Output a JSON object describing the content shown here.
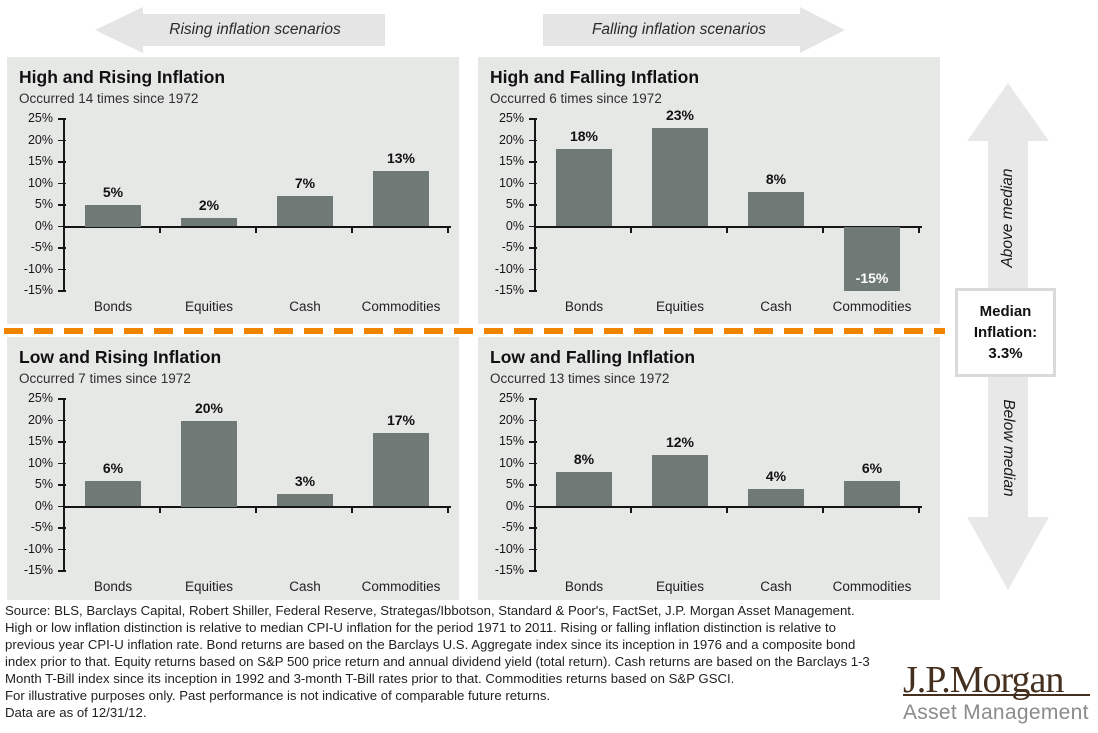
{
  "banners": {
    "left": "Rising inflation scenarios",
    "right": "Falling inflation scenarios"
  },
  "median_panel": {
    "above_label": "Above median",
    "below_label": "Below median",
    "box_lines": [
      "Median",
      "Inflation:",
      "3.3%"
    ]
  },
  "chart_data": [
    {
      "type": "bar",
      "title": "High and Rising Inflation",
      "subtitle": "Occurred 14 times since 1972",
      "categories": [
        "Bonds",
        "Equities",
        "Cash",
        "Commodities"
      ],
      "values": [
        5,
        2,
        7,
        13
      ],
      "value_labels": [
        "5%",
        "2%",
        "7%",
        "13%"
      ],
      "ylim": [
        -15,
        25
      ],
      "ytick_step": 5,
      "ytick_labels": [
        "25%",
        "20%",
        "15%",
        "10%",
        "5%",
        "0%",
        "-5%",
        "-10%",
        "-15%"
      ],
      "grid": false,
      "bar_color": "#6f7a76"
    },
    {
      "type": "bar",
      "title": "High and Falling Inflation",
      "subtitle": "Occurred 6 times since 1972",
      "categories": [
        "Bonds",
        "Equities",
        "Cash",
        "Commodities"
      ],
      "values": [
        18,
        23,
        8,
        -15
      ],
      "value_labels": [
        "18%",
        "23%",
        "8%",
        "-15%"
      ],
      "ylim": [
        -15,
        25
      ],
      "ytick_step": 5,
      "ytick_labels": [
        "25%",
        "20%",
        "15%",
        "10%",
        "5%",
        "0%",
        "-5%",
        "-10%",
        "-15%"
      ],
      "grid": false,
      "bar_color": "#6f7a76"
    },
    {
      "type": "bar",
      "title": "Low and Rising Inflation",
      "subtitle": "Occurred 7 times since 1972",
      "categories": [
        "Bonds",
        "Equities",
        "Cash",
        "Commodities"
      ],
      "values": [
        6,
        20,
        3,
        17
      ],
      "value_labels": [
        "6%",
        "20%",
        "3%",
        "17%"
      ],
      "ylim": [
        -15,
        25
      ],
      "ytick_step": 5,
      "ytick_labels": [
        "25%",
        "20%",
        "15%",
        "10%",
        "5%",
        "0%",
        "-5%",
        "-10%",
        "-15%"
      ],
      "grid": false,
      "bar_color": "#6f7a76"
    },
    {
      "type": "bar",
      "title": "Low and Falling Inflation",
      "subtitle": "Occurred 13 times since 1972",
      "categories": [
        "Bonds",
        "Equities",
        "Cash",
        "Commodities"
      ],
      "values": [
        8,
        12,
        4,
        6
      ],
      "value_labels": [
        "8%",
        "12%",
        "4%",
        "6%"
      ],
      "ylim": [
        -15,
        25
      ],
      "ytick_step": 5,
      "ytick_labels": [
        "25%",
        "20%",
        "15%",
        "10%",
        "5%",
        "0%",
        "-5%",
        "-10%",
        "-15%"
      ],
      "grid": false,
      "bar_color": "#6f7a76"
    }
  ],
  "colors": {
    "bar": "#6f7a76",
    "panel_background": "#e6e8e6",
    "arrow_fill": "#e7e8e7",
    "divider_orange": "#f08300",
    "logo_brown": "#45301f",
    "logo_gray": "#8b8b8b"
  },
  "footer": {
    "source": "Source: BLS, Barclays Capital, Robert Shiller, Federal Reserve, Strategas/Ibbotson, Standard & Poor's, FactSet, J.P. Morgan Asset Management.",
    "body_lines": [
      "High or low inflation distinction is relative to median CPI-U inflation for the period 1971 to 2011.  Rising or falling inflation distinction is relative to",
      "previous year CPI-U inflation rate. Bond returns are based on the Barclays U.S. Aggregate index since its inception in 1976 and a composite bond",
      "index prior to that. Equity returns based on S&P 500 price return and annual dividend yield (total return). Cash returns are based on the Barclays 1-3",
      "Month T-Bill index since its inception in 1992 and 3-month T-Bill rates prior to that. Commodities returns based on S&P GSCI."
    ],
    "illustrative": "For illustrative purposes only. Past performance is not indicative of comparable future returns.",
    "as_of": "Data are as of 12/31/12."
  },
  "logo": {
    "brand": "J.P.Morgan",
    "division": "Asset Management"
  }
}
